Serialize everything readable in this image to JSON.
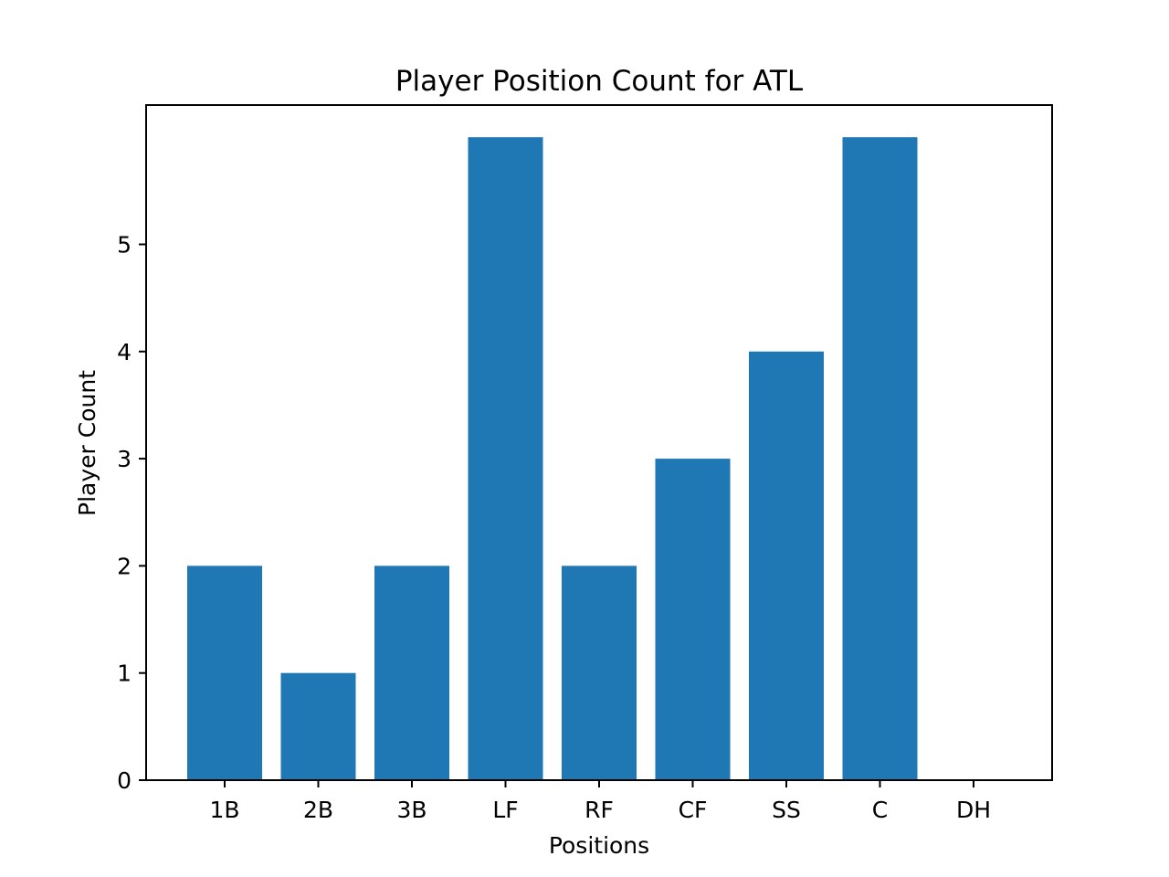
{
  "chart_data": {
    "type": "bar",
    "title": "Player Position Count for ATL",
    "xlabel": "Positions",
    "ylabel": "Player Count",
    "categories": [
      "1B",
      "2B",
      "3B",
      "LF",
      "RF",
      "CF",
      "SS",
      "C",
      "DH"
    ],
    "values": [
      2,
      1,
      2,
      6,
      2,
      3,
      4,
      6,
      0
    ],
    "yticks": [
      0,
      1,
      2,
      3,
      4,
      5
    ],
    "ylim": [
      0,
      6.3
    ],
    "bar_color": "#1f77b4",
    "grid": false,
    "legend": "none"
  }
}
